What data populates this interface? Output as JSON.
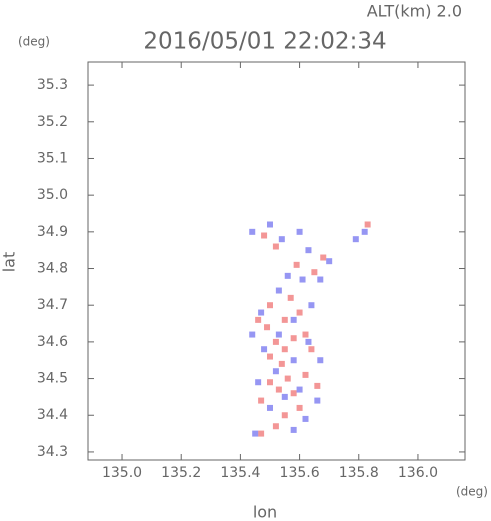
{
  "chart_data": {
    "type": "scatter",
    "title": "2016/05/01 22:02:34",
    "subtitle": "ALT(km) 2.0",
    "y_unit": "(deg)",
    "x_unit": "(deg)",
    "x_label": "lon",
    "y_label": "lat",
    "xlim": [
      134.885,
      136.159
    ],
    "ylim": [
      34.278,
      35.363
    ],
    "xticks": [
      {
        "value": 135.0,
        "label": "135.0"
      },
      {
        "value": 135.2,
        "label": "135.2"
      },
      {
        "value": 135.4,
        "label": "135.4"
      },
      {
        "value": 135.6,
        "label": "135.6"
      },
      {
        "value": 135.8,
        "label": "135.8"
      },
      {
        "value": 136.0,
        "label": "136.0"
      }
    ],
    "yticks": [
      {
        "value": 34.3,
        "label": "34.3"
      },
      34.4,
      34.5,
      34.6,
      34.7,
      34.8,
      34.9,
      {
        "value": 35.0,
        "label": "35.0"
      },
      35.1,
      35.2,
      35.3
    ],
    "series": [
      {
        "color": "#f07c7c",
        "x": [
          135.47,
          135.52,
          135.55,
          135.6,
          135.58,
          135.53,
          135.5,
          135.56,
          135.62,
          135.54,
          135.5,
          135.55,
          135.52,
          135.58,
          135.62,
          135.49,
          135.55,
          135.6,
          135.5,
          135.46,
          135.57,
          135.52,
          135.48,
          135.59,
          135.65,
          135.68,
          135.83,
          135.47,
          135.64,
          135.66
        ],
        "values": [
          34.35,
          34.37,
          34.4,
          34.42,
          34.46,
          34.47,
          34.49,
          34.5,
          34.51,
          34.54,
          34.56,
          34.58,
          34.6,
          34.61,
          34.62,
          34.64,
          34.66,
          34.68,
          34.7,
          34.66,
          34.72,
          34.86,
          34.89,
          34.81,
          34.79,
          34.83,
          34.92,
          34.44,
          34.58,
          34.48
        ]
      },
      {
        "color": "#7c7cf0",
        "x": [
          135.45,
          135.58,
          135.62,
          135.5,
          135.66,
          135.46,
          135.6,
          135.52,
          135.58,
          135.48,
          135.63,
          135.53,
          135.47,
          135.58,
          135.64,
          135.53,
          135.44,
          135.5,
          135.6,
          135.63,
          135.7,
          135.67,
          135.79,
          135.82,
          135.56,
          135.67,
          135.55,
          135.44,
          135.61,
          135.54
        ],
        "values": [
          34.35,
          34.36,
          34.39,
          34.42,
          34.44,
          34.49,
          34.47,
          34.52,
          34.55,
          34.58,
          34.6,
          34.62,
          34.68,
          34.66,
          34.7,
          34.74,
          34.9,
          34.92,
          34.9,
          34.85,
          34.82,
          34.77,
          34.88,
          34.9,
          34.78,
          34.55,
          34.45,
          34.62,
          34.77,
          34.88
        ]
      }
    ]
  }
}
